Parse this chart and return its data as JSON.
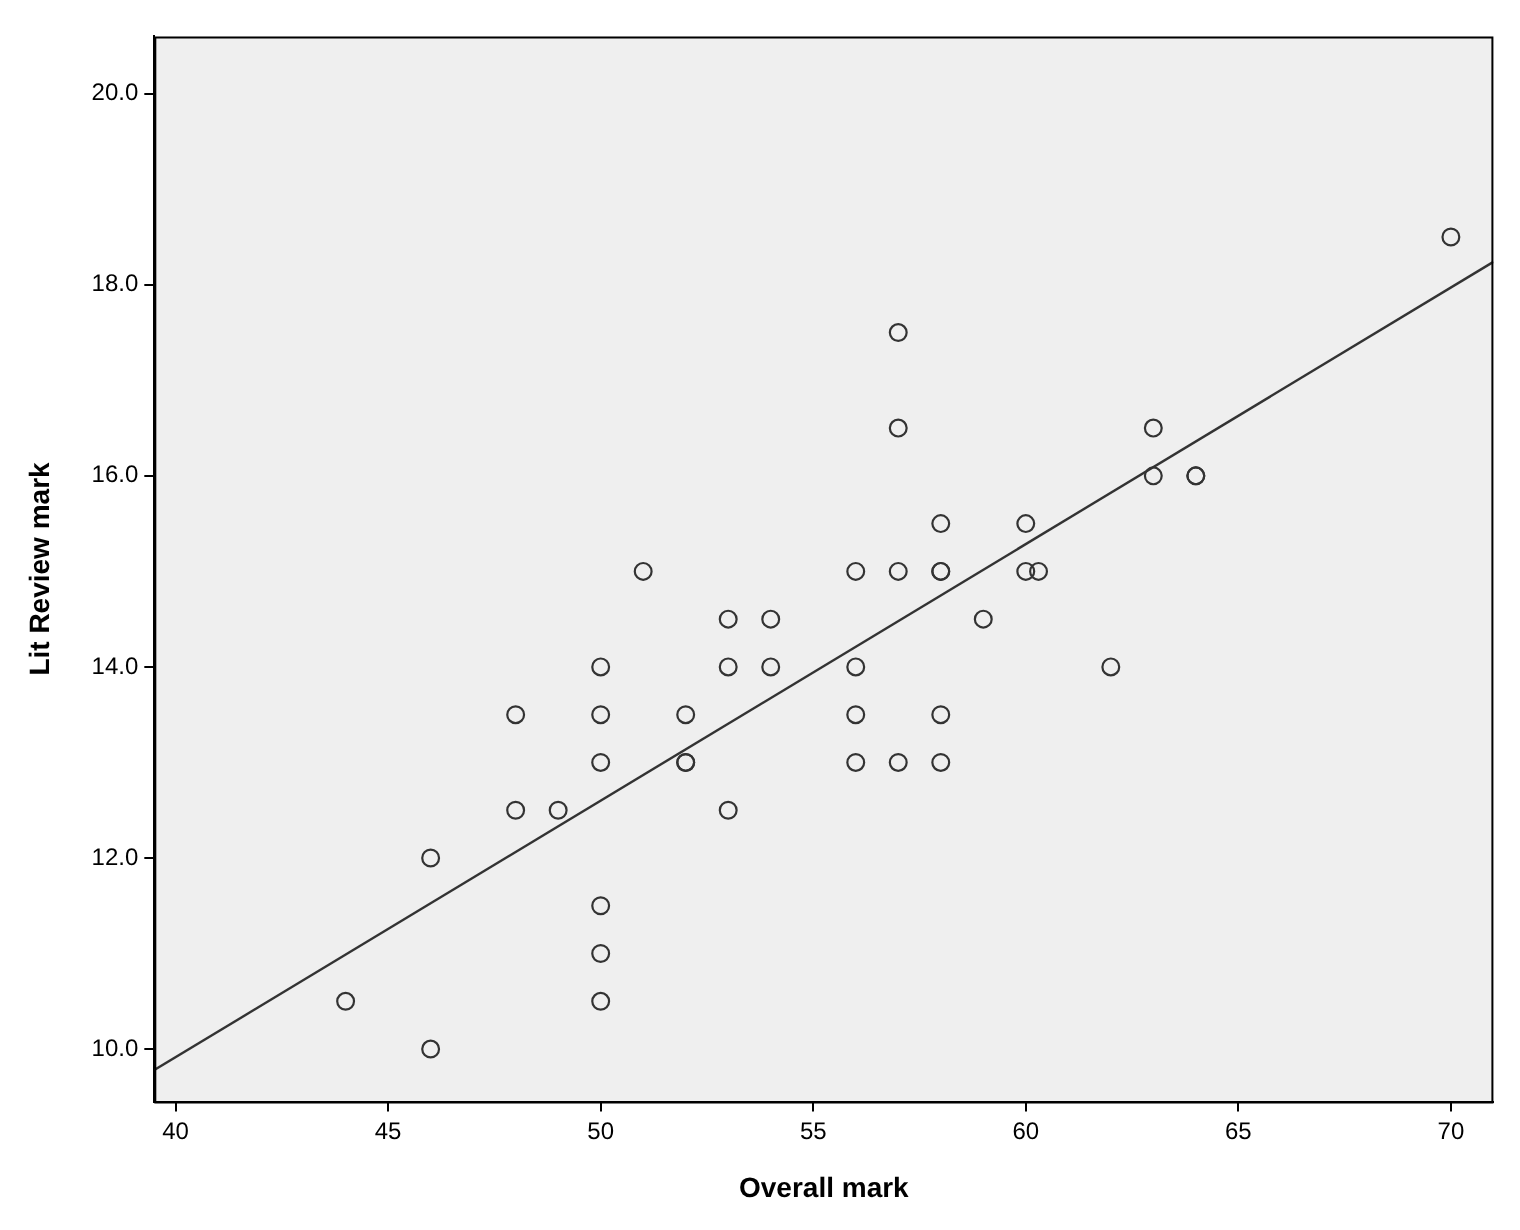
{
  "chart_data": {
    "type": "scatter",
    "xlabel": "Overall mark",
    "ylabel": "Lit Review mark",
    "xlim": [
      39.5,
      71
    ],
    "ylim": [
      9.45,
      20.6
    ],
    "xticks": [
      40,
      45,
      50,
      55,
      60,
      65,
      70
    ],
    "yticks": [
      {
        "value": 10,
        "label": "10.0"
      },
      {
        "value": 12,
        "label": "12.0"
      },
      {
        "value": 14,
        "label": "14.0"
      },
      {
        "value": 16,
        "label": "16.0"
      },
      {
        "value": 18,
        "label": "18.0"
      },
      {
        "value": 20,
        "label": "20.0"
      }
    ],
    "grid": false,
    "legend": false,
    "marker": "circle",
    "series": [
      {
        "color": "#333333",
        "x": [
          44,
          46,
          46,
          48,
          48,
          49,
          50,
          50,
          50,
          50,
          50,
          50,
          51,
          52,
          52,
          52,
          53,
          53,
          53,
          54,
          54,
          56,
          56,
          56,
          56,
          57,
          57,
          57,
          57,
          58,
          58,
          58,
          58,
          58,
          59,
          60,
          60,
          60.3,
          62,
          63,
          63,
          64,
          64,
          70
        ],
        "values": [
          10.5,
          10,
          12,
          13.5,
          12.5,
          12.5,
          14,
          13.5,
          13,
          11.5,
          11,
          10.5,
          15,
          13.5,
          13,
          13,
          14.5,
          14,
          12.5,
          14.5,
          14,
          15,
          14,
          13.5,
          13,
          17.5,
          16.5,
          15,
          13,
          15.5,
          15,
          15,
          13.5,
          13,
          14.5,
          15.5,
          15,
          15,
          14,
          16.5,
          16,
          16,
          16,
          18.5
        ]
      },
      {
        "type": "line",
        "color": "#333333",
        "marker": "none",
        "x": [
          39.5,
          71
        ],
        "values": [
          9.78,
          18.24
        ]
      }
    ]
  }
}
